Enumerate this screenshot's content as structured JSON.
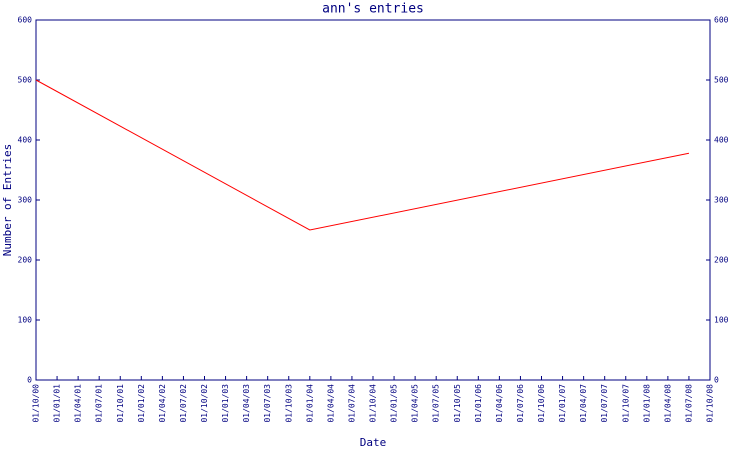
{
  "chart_data": {
    "type": "line",
    "title": "ann's entries",
    "x_label": "Date",
    "y_label": "Number of Entries",
    "categories": [
      "01/10/00",
      "01/01/01",
      "01/04/01",
      "01/07/01",
      "01/10/01",
      "01/01/02",
      "01/04/02",
      "01/07/02",
      "01/10/02",
      "01/01/03",
      "01/04/03",
      "01/07/03",
      "01/10/03",
      "01/01/04",
      "01/04/04",
      "01/07/04",
      "01/10/04",
      "01/01/05",
      "01/04/05",
      "01/07/05",
      "01/10/05",
      "01/01/06",
      "01/04/06",
      "01/07/06",
      "01/10/06",
      "01/01/07",
      "01/04/07",
      "01/07/07",
      "01/10/07",
      "01/01/08",
      "01/04/08",
      "01/07/08",
      "01/10/08"
    ],
    "series": [
      {
        "color": "#ff0000",
        "x": [
          "01/10/00",
          "01/01/04",
          "01/07/08"
        ],
        "values": [
          500,
          250,
          378
        ]
      }
    ],
    "ylim": [
      0,
      600
    ],
    "yticks": [
      0,
      100,
      200,
      300,
      400,
      500,
      600
    ],
    "y2lim": [
      0,
      600
    ],
    "y2ticks": [
      0,
      100,
      200,
      300,
      400,
      500,
      600
    ],
    "axis_color": "#000080"
  }
}
